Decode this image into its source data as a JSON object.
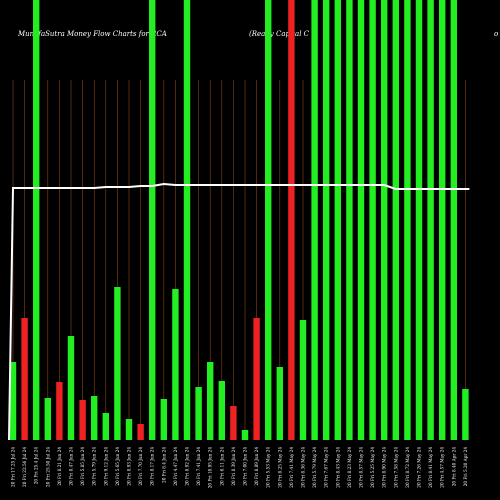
{
  "title_left": "MunafaSutra  Money Flow  Charts for RCA",
  "title_right": "(Ready Capital C",
  "title_edge": "o",
  "chart_data": {
    "type": "bar",
    "title": "MunafaSutra  Money Flow  Charts for RCA",
    "subtitle": "(Ready Capital C",
    "colors": {
      "up": "#22ee22",
      "down": "#ee2222",
      "grid": "#8B4513",
      "line": "#ffffff",
      "background": "#000000"
    },
    "grid": true,
    "categories": [
      "20 Fri 17.25 Jul 24",
      "20 Fri 22.56 Jul 24",
      "20 Fri 25.4 Jul 24",
      "20 Fri 25.50 Jul 24",
      "20 Fri 8.21 Jun 24",
      "20 Fri 8.47 Jun 24",
      "20 Fri 5.85 Jun 24",
      "20 Fri 5.79 Jun 24",
      "20 Fri 9.12 Jun 24",
      "20 Fri 5.65 Jun 24",
      "20 Fri 8.93 Jun 24",
      "20 Fri 7.70 Jun 24",
      "20 Fri 8.17 Jun 24",
      "20 Fri 8.4 Jun 24",
      "20 Fri 4.47 Jun 24",
      "20 Fri 8.92 Jun 24",
      "20 Fri 7.41 Jun 24",
      "20 Fri 10.95 Jun 24",
      "20 Fri 6.11 Jun 24",
      "20 Fri 8.39 Jun 24",
      "20 Fri 7.00 Jun 24",
      "20 Fri 8.89 Jun 24",
      "20 Fri 5.53 May 24",
      "20 Fri 8.25 May 24",
      "20 Fri 7.41 May 24",
      "20 Fri 8.36 May 24",
      "20 Fri 5.79 May 24",
      "20 Fri 7.67 May 24",
      "20 Fri 8.43 May 24",
      "20 Fri 8.23 May 24",
      "20 Fri 8.57 May 24",
      "20 Fri 5.25 May 24",
      "20 Fri 8.90 May 24",
      "20 Fri 7.58 May 24",
      "20 Fri 8.72 May 24",
      "20 Fri 7.26 May 24",
      "20 Fri 8.41 May 24",
      "20 Fri 4.57 May 24",
      "20 Fri 8.40 Apr 24",
      "20 Fri 5.20 Apr 24"
    ],
    "bar_colors": [
      "green",
      "red",
      "green",
      "green",
      "red",
      "green",
      "red",
      "green",
      "green",
      "green",
      "green",
      "red",
      "green",
      "green",
      "green",
      "green",
      "green",
      "green",
      "green",
      "red",
      "green",
      "red",
      "green",
      "green",
      "red",
      "green",
      "green",
      "green",
      "green",
      "green",
      "green",
      "green",
      "green",
      "green",
      "green",
      "green",
      "green",
      "green",
      "green",
      "green"
    ],
    "values": [
      78,
      122,
      440,
      42,
      58,
      104,
      40,
      44,
      27,
      153,
      21,
      16,
      440,
      41,
      151,
      440,
      53,
      78,
      59,
      34,
      10,
      122,
      440,
      73,
      440,
      120,
      440,
      440,
      440,
      440,
      440,
      440,
      440,
      440,
      440,
      440,
      440,
      440,
      440,
      51
    ],
    "line": [
      188,
      188,
      188,
      188,
      188,
      188,
      188,
      188,
      187,
      187,
      187,
      186,
      186,
      184,
      185,
      185,
      185,
      185,
      185,
      185,
      185,
      185,
      185,
      185,
      185,
      185,
      185,
      185,
      185,
      185,
      185,
      185,
      185,
      189,
      189,
      189,
      189,
      189,
      189,
      189
    ],
    "line_start": 440
  }
}
